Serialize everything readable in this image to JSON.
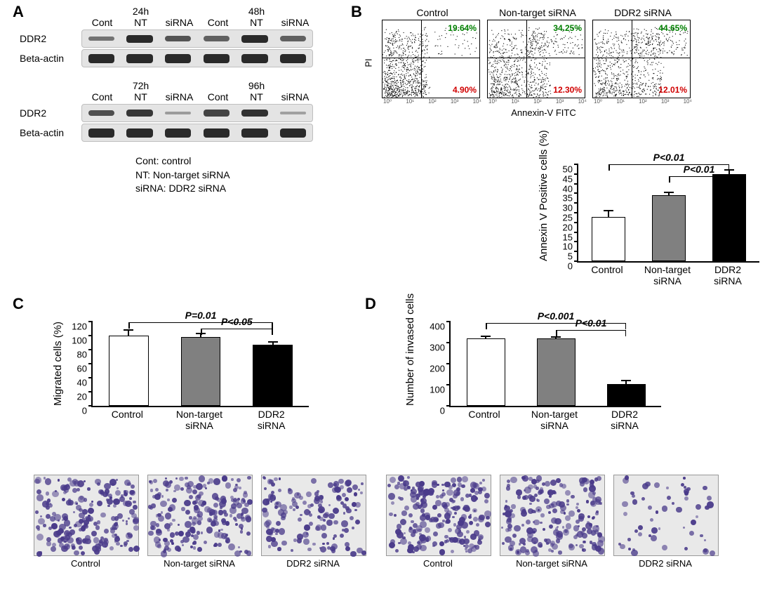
{
  "colors": {
    "text": "#000000",
    "bg": "#ffffff",
    "bar_control": "#ffffff",
    "bar_nt": "#808080",
    "bar_ddr2": "#000000",
    "bar_border": "#000000",
    "axis": "#000000",
    "pct_top": "#008000",
    "pct_bot": "#d00000",
    "gel_bg": "#e4e4e4",
    "band": "#2a2a2a",
    "micro_bg": "#e9e9e9",
    "cell_purple": "#4a3b8a"
  },
  "panel_labels": {
    "A": "A",
    "B": "B",
    "C": "C",
    "D": "D"
  },
  "panelA": {
    "timepoints_top": [
      "24h",
      "48h"
    ],
    "timepoints_bot": [
      "72h",
      "96h"
    ],
    "lane_labels": [
      "Cont",
      "NT",
      "siRNA",
      "Cont",
      "NT",
      "siRNA"
    ],
    "row_labels": [
      "DDR2",
      "Beta-actin"
    ],
    "legend": [
      "Cont: control",
      "NT: Non-target siRNA",
      "siRNA: DDR2 siRNA"
    ],
    "band_intensity": {
      "top_ddr2": [
        0.4,
        1.0,
        0.65,
        0.55,
        1.0,
        0.55
      ],
      "top_actin": [
        1.0,
        1.0,
        1.0,
        1.0,
        1.0,
        1.0
      ],
      "bot_ddr2": [
        0.7,
        0.9,
        0.05,
        0.8,
        0.95,
        0.02
      ],
      "bot_actin": [
        1.0,
        1.0,
        1.0,
        1.0,
        1.0,
        1.0
      ]
    }
  },
  "panelB": {
    "y_axis_label": "PI",
    "x_axis_label": "Annexin-V FITC",
    "facs": [
      {
        "title": "Control",
        "pct_top": "19.64%",
        "pct_bot": "4.90%",
        "density_shift": 0.2
      },
      {
        "title": "Non-target siRNA",
        "pct_top": "34.25%",
        "pct_bot": "12.30%",
        "density_shift": 0.45
      },
      {
        "title": "DDR2 siRNA",
        "pct_top": "44.65%",
        "pct_bot": "12.01%",
        "density_shift": 0.6
      }
    ],
    "axis_ticks": [
      "10⁰",
      "10¹",
      "10²",
      "10³",
      "10⁴"
    ],
    "bar": {
      "ytitle": "Annexin V Positive cells (%)",
      "ylim": [
        0,
        50
      ],
      "ytick_step": 5,
      "categories": [
        "Control",
        "Non-target\nsiRNA",
        "DDR2\nsiRNA"
      ],
      "values": [
        23,
        34,
        45
      ],
      "errors": [
        3,
        1.5,
        2
      ],
      "fills": [
        "#ffffff",
        "#808080",
        "#000000"
      ],
      "sig": [
        {
          "from": 0,
          "to": 2,
          "label": "P<0.01",
          "y": 50
        },
        {
          "from": 1,
          "to": 2,
          "label": "P<0.01",
          "y": 44
        }
      ]
    }
  },
  "panelC": {
    "bar": {
      "ytitle": "Migrated cells (%)",
      "ylim": [
        0,
        120
      ],
      "ytick_step": 20,
      "categories": [
        "Control",
        "Non-target\nsiRNA",
        "DDR2\nsiRNA"
      ],
      "values": [
        100,
        98,
        87
      ],
      "errors": [
        8,
        5,
        4
      ],
      "fills": [
        "#ffffff",
        "#808080",
        "#000000"
      ],
      "sig": [
        {
          "from": 0,
          "to": 2,
          "label": "P=0.01",
          "y": 119
        },
        {
          "from": 1,
          "to": 2,
          "label": "P<0.05",
          "y": 110
        }
      ]
    },
    "micrographs": [
      {
        "label": "Control",
        "density": 1.0
      },
      {
        "label": "Non-target siRNA",
        "density": 0.95
      },
      {
        "label": "DDR2 siRNA",
        "density": 0.7
      }
    ]
  },
  "panelD": {
    "bar": {
      "ytitle": "Number of invased cells",
      "ylim": [
        0,
        400
      ],
      "ytick_step": 100,
      "categories": [
        "Control",
        "Non-target\nsiRNA",
        "DDR2\nsiRNA"
      ],
      "values": [
        320,
        320,
        105
      ],
      "errors": [
        10,
        8,
        15
      ],
      "fills": [
        "#ffffff",
        "#808080",
        "#000000"
      ],
      "sig": [
        {
          "from": 0,
          "to": 2,
          "label": "P<0.001",
          "y": 395
        },
        {
          "from": 1,
          "to": 2,
          "label": "P<0.01",
          "y": 360
        }
      ]
    },
    "micrographs": [
      {
        "label": "Control",
        "density": 1.0
      },
      {
        "label": "Non-target siRNA",
        "density": 0.95
      },
      {
        "label": "DDR2 siRNA",
        "density": 0.25
      }
    ]
  }
}
